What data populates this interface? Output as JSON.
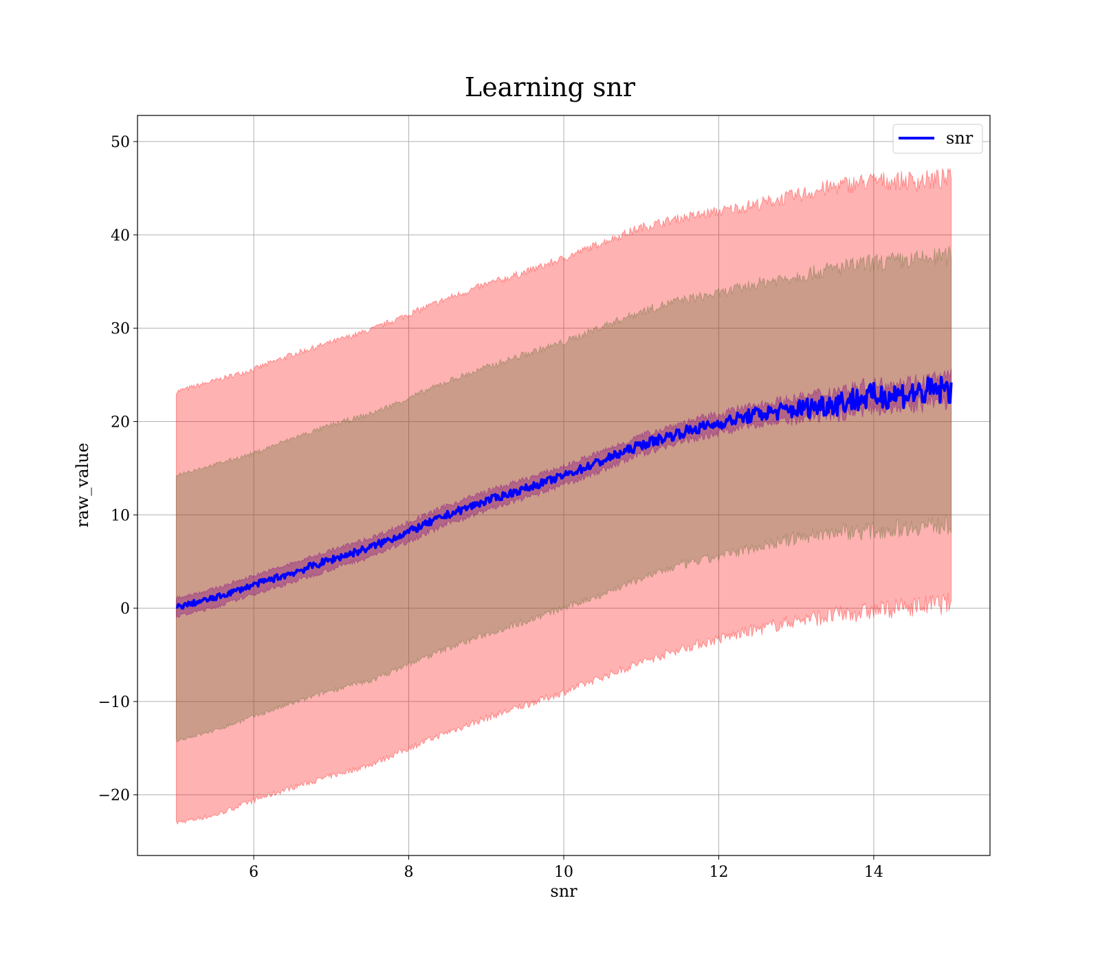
{
  "chart_data": {
    "type": "line",
    "title": "Learning snr",
    "xlabel": "snr",
    "ylabel": "raw_value",
    "xlim": [
      4.5,
      15.5
    ],
    "ylim": [
      -26.5,
      52.8
    ],
    "xticks": [
      6,
      8,
      10,
      12,
      14
    ],
    "yticks": [
      -20,
      -10,
      0,
      10,
      20,
      30,
      40,
      50
    ],
    "ytick_labels": [
      "−20",
      "−10",
      "0",
      "10",
      "20",
      "30",
      "40",
      "50"
    ],
    "grid": true,
    "legend": {
      "position": "top-right",
      "entries": [
        "snr"
      ]
    },
    "x_range": [
      5,
      15
    ],
    "series": [
      {
        "name": "snr",
        "color": "#0000ff",
        "x": [
          5,
          5.5,
          6,
          6.5,
          7,
          7.5,
          8,
          8.5,
          9,
          9.5,
          10,
          10.5,
          11,
          11.5,
          12,
          12.5,
          13,
          13.5,
          14,
          14.5,
          15
        ],
        "y": [
          0.1,
          1.1,
          2.5,
          3.8,
          5.2,
          6.5,
          8.2,
          10.0,
          11.5,
          12.8,
          14.2,
          15.8,
          17.5,
          18.8,
          19.8,
          20.8,
          21.3,
          22.0,
          22.7,
          23.0,
          23.5
        ],
        "noise": [
          0.3,
          0.3,
          0.3,
          0.4,
          0.4,
          0.4,
          0.4,
          0.4,
          0.4,
          0.4,
          0.4,
          0.5,
          0.5,
          0.6,
          0.6,
          0.8,
          1.0,
          1.4,
          1.4,
          1.5,
          1.6
        ]
      }
    ],
    "bands": [
      {
        "color": "#ff0000",
        "opacity": 0.3,
        "upper": [
          23.2,
          24.4,
          25.6,
          27.2,
          28.5,
          29.8,
          31.5,
          33.2,
          34.7,
          36.0,
          37.5,
          39.2,
          40.8,
          41.8,
          42.5,
          43.3,
          44.2,
          45.2,
          45.8,
          45.8,
          46.0
        ],
        "lower": [
          -23.0,
          -22.2,
          -20.6,
          -19.2,
          -18.0,
          -16.8,
          -15.0,
          -13.3,
          -11.8,
          -10.4,
          -9.0,
          -7.4,
          -5.8,
          -4.4,
          -3.3,
          -2.3,
          -1.3,
          -0.8,
          -0.3,
          0.2,
          0.5
        ],
        "noise": [
          0.25,
          0.25,
          0.3,
          0.3,
          0.3,
          0.3,
          0.35,
          0.35,
          0.4,
          0.4,
          0.4,
          0.4,
          0.5,
          0.5,
          0.6,
          0.7,
          0.8,
          1.0,
          1.0,
          1.1,
          1.2
        ]
      },
      {
        "color": "#556b2f",
        "opacity": 0.3,
        "upper": [
          14.3,
          15.4,
          16.6,
          18.2,
          19.6,
          20.8,
          22.5,
          24.3,
          25.8,
          27.2,
          28.5,
          30.2,
          31.8,
          33.0,
          33.7,
          34.8,
          35.6,
          36.4,
          37.0,
          37.3,
          37.8
        ],
        "lower": [
          -14.2,
          -13.1,
          -11.6,
          -10.2,
          -8.8,
          -7.8,
          -6.0,
          -4.3,
          -2.8,
          -1.4,
          0.0,
          1.5,
          3.2,
          4.6,
          5.5,
          6.6,
          7.5,
          8.2,
          8.3,
          8.7,
          9.0
        ],
        "noise": [
          0.2,
          0.2,
          0.25,
          0.25,
          0.3,
          0.3,
          0.3,
          0.35,
          0.35,
          0.4,
          0.4,
          0.4,
          0.45,
          0.5,
          0.55,
          0.65,
          0.8,
          0.9,
          1.0,
          1.0,
          1.1
        ]
      },
      {
        "color": "#800080",
        "opacity": 0.35,
        "upper": [
          1.1,
          2.1,
          3.5,
          4.8,
          6.2,
          7.5,
          9.2,
          11.0,
          12.5,
          13.8,
          15.2,
          16.8,
          18.5,
          19.8,
          20.8,
          21.8,
          22.5,
          23.3,
          24.0,
          24.3,
          24.8
        ],
        "lower": [
          -0.9,
          0.1,
          1.5,
          2.8,
          4.2,
          5.5,
          7.2,
          9.0,
          10.5,
          11.8,
          13.2,
          14.8,
          16.5,
          17.8,
          18.8,
          19.8,
          20.1,
          20.7,
          21.4,
          21.7,
          22.2
        ],
        "noise": [
          0.2,
          0.2,
          0.2,
          0.25,
          0.25,
          0.25,
          0.3,
          0.3,
          0.3,
          0.3,
          0.3,
          0.35,
          0.35,
          0.4,
          0.45,
          0.5,
          0.6,
          0.8,
          0.8,
          0.9,
          1.0
        ]
      }
    ]
  }
}
